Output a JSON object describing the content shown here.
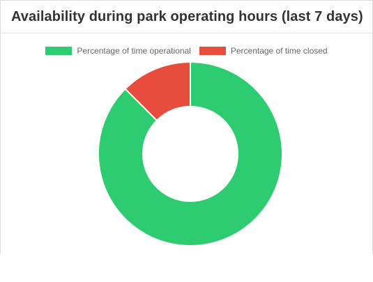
{
  "card": {
    "title": "Availability during park operating hours (last 7 days)"
  },
  "chart_data": {
    "type": "pie",
    "variant": "doughnut",
    "categories": [
      "Percentage of time operational",
      "Percentage of time closed"
    ],
    "values": [
      87.5,
      12.5
    ],
    "colors": [
      "#2ecc71",
      "#e74c3c"
    ],
    "legend_position": "top"
  }
}
